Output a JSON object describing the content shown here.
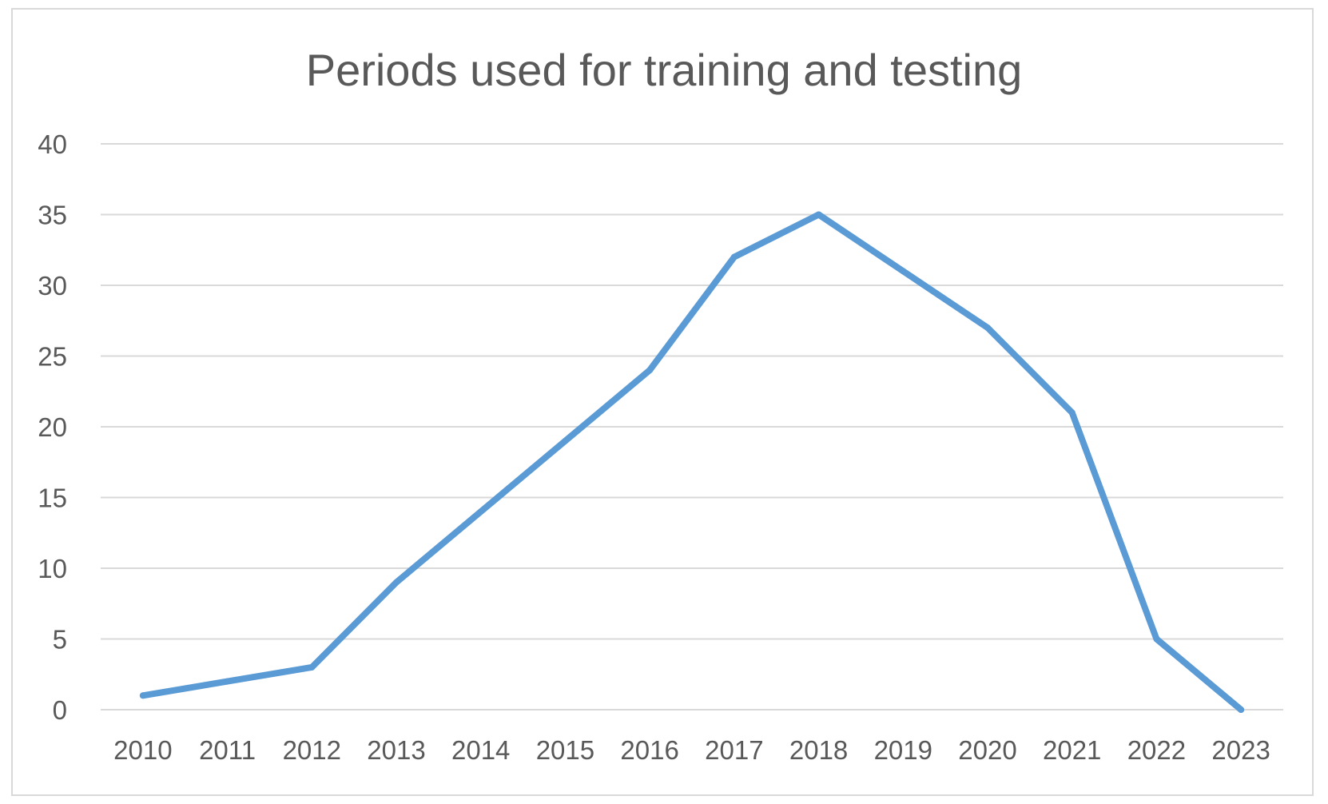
{
  "chart_data": {
    "type": "line",
    "title": "Periods used for training and testing",
    "xlabel": "",
    "ylabel": "",
    "categories": [
      "2010",
      "2011",
      "2012",
      "2013",
      "2014",
      "2015",
      "2016",
      "2017",
      "2018",
      "2019",
      "2020",
      "2021",
      "2022",
      "2023"
    ],
    "series": [
      {
        "values": [
          1,
          2,
          3,
          9,
          14,
          19,
          24,
          32,
          35,
          31,
          27,
          21,
          5,
          0
        ],
        "color": "#5b9bd5"
      }
    ],
    "ylim": [
      0,
      40
    ],
    "yticks": [
      "0",
      "5",
      "10",
      "15",
      "20",
      "25",
      "30",
      "35",
      "40"
    ],
    "grid": "horizontal",
    "legend": "none"
  }
}
